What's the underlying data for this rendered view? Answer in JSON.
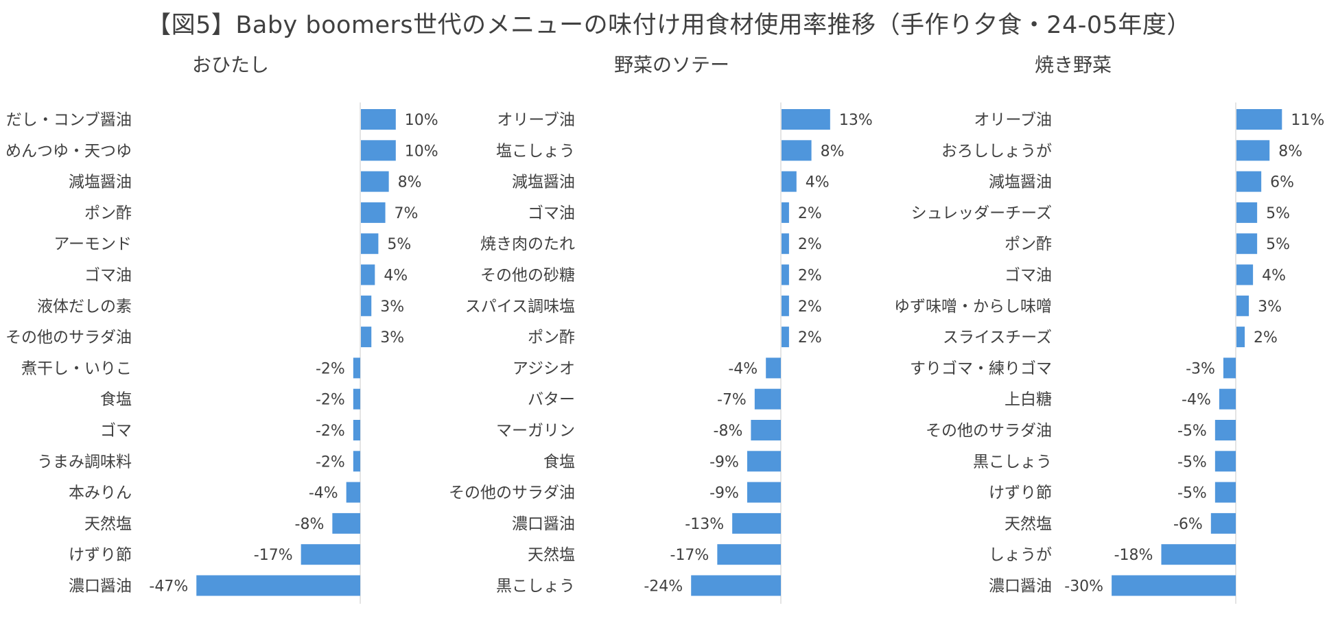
{
  "title": "【図5】Baby boomers世代のメニューの味付け用食材使用率推移（手作り夕食・24-05年度）",
  "colors": {
    "bar": "#4F96DC",
    "axis": "#C8C8C8",
    "text": "#404040"
  },
  "chart_data": [
    {
      "type": "bar",
      "orientation": "horizontal",
      "title": "おひたし",
      "categories": [
        "だし・コンブ醤油",
        "めんつゆ・天つゆ",
        "減塩醤油",
        "ポン酢",
        "アーモンド",
        "ゴマ油",
        "液体だしの素",
        "その他のサラダ油",
        "煮干し・いりこ",
        "食塩",
        "ゴマ",
        "うまみ調味料",
        "本みりん",
        "天然塩",
        "けずり節",
        "濃口醤油"
      ],
      "values": [
        10,
        10,
        8,
        7,
        5,
        4,
        3,
        3,
        -2,
        -2,
        -2,
        -2,
        -4,
        -8,
        -17,
        -47
      ],
      "labels": [
        "10%",
        "10%",
        "8%",
        "7%",
        "5%",
        "4%",
        "3%",
        "3%",
        "-2%",
        "-2%",
        "-2%",
        "-2%",
        "-4%",
        "-8%",
        "-17%",
        "-47%"
      ],
      "unit": "%"
    },
    {
      "type": "bar",
      "orientation": "horizontal",
      "title": "野菜のソテー",
      "categories": [
        "オリーブ油",
        "塩こしょう",
        "減塩醤油",
        "ゴマ油",
        "焼き肉のたれ",
        "その他の砂糖",
        "スパイス調味塩",
        "ポン酢",
        "アジシオ",
        "バター",
        "マーガリン",
        "食塩",
        "その他のサラダ油",
        "濃口醤油",
        "天然塩",
        "黒こしょう"
      ],
      "values": [
        13,
        8,
        4,
        2,
        2,
        2,
        2,
        2,
        -4,
        -7,
        -8,
        -9,
        -9,
        -13,
        -17,
        -24
      ],
      "labels": [
        "13%",
        "8%",
        "4%",
        "2%",
        "2%",
        "2%",
        "2%",
        "2%",
        "-4%",
        "-7%",
        "-8%",
        "-9%",
        "-9%",
        "-13%",
        "-17%",
        "-24%"
      ],
      "unit": "%"
    },
    {
      "type": "bar",
      "orientation": "horizontal",
      "title": "焼き野菜",
      "categories": [
        "オリーブ油",
        "おろししょうが",
        "減塩醤油",
        "シュレッダーチーズ",
        "ポン酢",
        "ゴマ油",
        "ゆず味噌・からし味噌",
        "スライスチーズ",
        "すりゴマ・練りゴマ",
        "上白糖",
        "その他のサラダ油",
        "黒こしょう",
        "けずり節",
        "天然塩",
        "しょうが",
        "濃口醤油"
      ],
      "values": [
        11,
        8,
        6,
        5,
        5,
        4,
        3,
        2,
        -3,
        -4,
        -5,
        -5,
        -5,
        -6,
        -18,
        -30
      ],
      "labels": [
        "11%",
        "8%",
        "6%",
        "5%",
        "5%",
        "4%",
        "3%",
        "2%",
        "-3%",
        "-4%",
        "-5%",
        "-5%",
        "-5%",
        "-6%",
        "-18%",
        "-30%"
      ],
      "unit": "%"
    }
  ]
}
